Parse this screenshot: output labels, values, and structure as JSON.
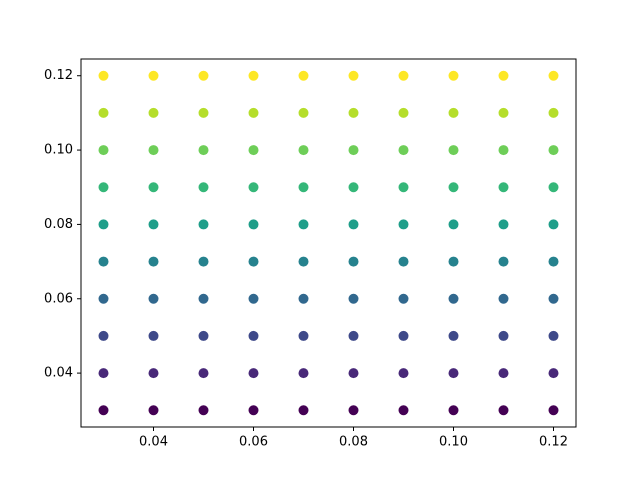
{
  "chart_data": {
    "type": "scatter",
    "x": [
      0.03,
      0.04,
      0.05,
      0.06,
      0.07,
      0.08,
      0.09,
      0.1,
      0.11,
      0.12
    ],
    "series": [
      {
        "color": "#440154",
        "values": [
          0.03,
          0.03,
          0.03,
          0.03,
          0.03,
          0.03,
          0.03,
          0.03,
          0.03,
          0.03
        ]
      },
      {
        "color": "#482878",
        "values": [
          0.04,
          0.04,
          0.04,
          0.04,
          0.04,
          0.04,
          0.04,
          0.04,
          0.04,
          0.04
        ]
      },
      {
        "color": "#3e4989",
        "values": [
          0.05,
          0.05,
          0.05,
          0.05,
          0.05,
          0.05,
          0.05,
          0.05,
          0.05,
          0.05
        ]
      },
      {
        "color": "#31688e",
        "values": [
          0.06,
          0.06,
          0.06,
          0.06,
          0.06,
          0.06,
          0.06,
          0.06,
          0.06,
          0.06
        ]
      },
      {
        "color": "#26828e",
        "values": [
          0.07,
          0.07,
          0.07,
          0.07,
          0.07,
          0.07,
          0.07,
          0.07,
          0.07,
          0.07
        ]
      },
      {
        "color": "#1f9e89",
        "values": [
          0.08,
          0.08,
          0.08,
          0.08,
          0.08,
          0.08,
          0.08,
          0.08,
          0.08,
          0.08
        ]
      },
      {
        "color": "#35b779",
        "values": [
          0.09,
          0.09,
          0.09,
          0.09,
          0.09,
          0.09,
          0.09,
          0.09,
          0.09,
          0.09
        ]
      },
      {
        "color": "#6ece58",
        "values": [
          0.1,
          0.1,
          0.1,
          0.1,
          0.1,
          0.1,
          0.1,
          0.1,
          0.1,
          0.1
        ]
      },
      {
        "color": "#b5de2b",
        "values": [
          0.11,
          0.11,
          0.11,
          0.11,
          0.11,
          0.11,
          0.11,
          0.11,
          0.11,
          0.11
        ]
      },
      {
        "color": "#fde725",
        "values": [
          0.12,
          0.12,
          0.12,
          0.12,
          0.12,
          0.12,
          0.12,
          0.12,
          0.12,
          0.12
        ]
      }
    ],
    "xlim": [
      0.0255,
      0.1245
    ],
    "ylim": [
      0.0255,
      0.1245
    ],
    "xticks": [
      0.04,
      0.06,
      0.08,
      {
        "value": 0.1,
        "label": "0.10"
      },
      0.12
    ],
    "yticks": [
      0.04,
      0.06,
      0.08,
      {
        "value": 0.1,
        "label": "0.10"
      },
      0.12
    ],
    "grid": false
  }
}
